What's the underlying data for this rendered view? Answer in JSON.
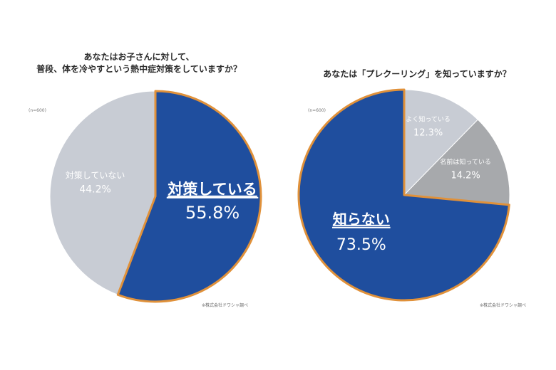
{
  "chart_data": [
    {
      "type": "pie",
      "title_lines": [
        "あなたはお子さんに対して、",
        "普段、体を冷やすという熱中症対策をしていますか？"
      ],
      "note": "(n=600)",
      "source": "※株式会社ドワシャ調べ",
      "slices": [
        {
          "label": "対策している",
          "value": 55.8,
          "display": "55.8%",
          "color": "#1f4e9e",
          "highlight": true
        },
        {
          "label": "対策していない",
          "value": 44.2,
          "display": "44.2%",
          "color": "#c8ccd4",
          "highlight": false
        }
      ],
      "outline_color": "#e0913a"
    },
    {
      "type": "pie",
      "title_lines": [
        "あなたは「プレクーリング」を知っていますか？"
      ],
      "note": "(n=600)",
      "source": "※株式会社ドワシャ調べ",
      "slices": [
        {
          "label": "よく知っている",
          "value": 12.3,
          "display": "12.3%",
          "color": "#c8ccd4",
          "highlight": false
        },
        {
          "label": "名前は知っている",
          "value": 14.2,
          "display": "14.2%",
          "color": "#a7a9ac",
          "highlight": false
        },
        {
          "label": "知らない",
          "value": 73.5,
          "display": "73.5%",
          "color": "#1f4e9e",
          "highlight": true
        }
      ],
      "outline_color": "#e0913a"
    }
  ]
}
